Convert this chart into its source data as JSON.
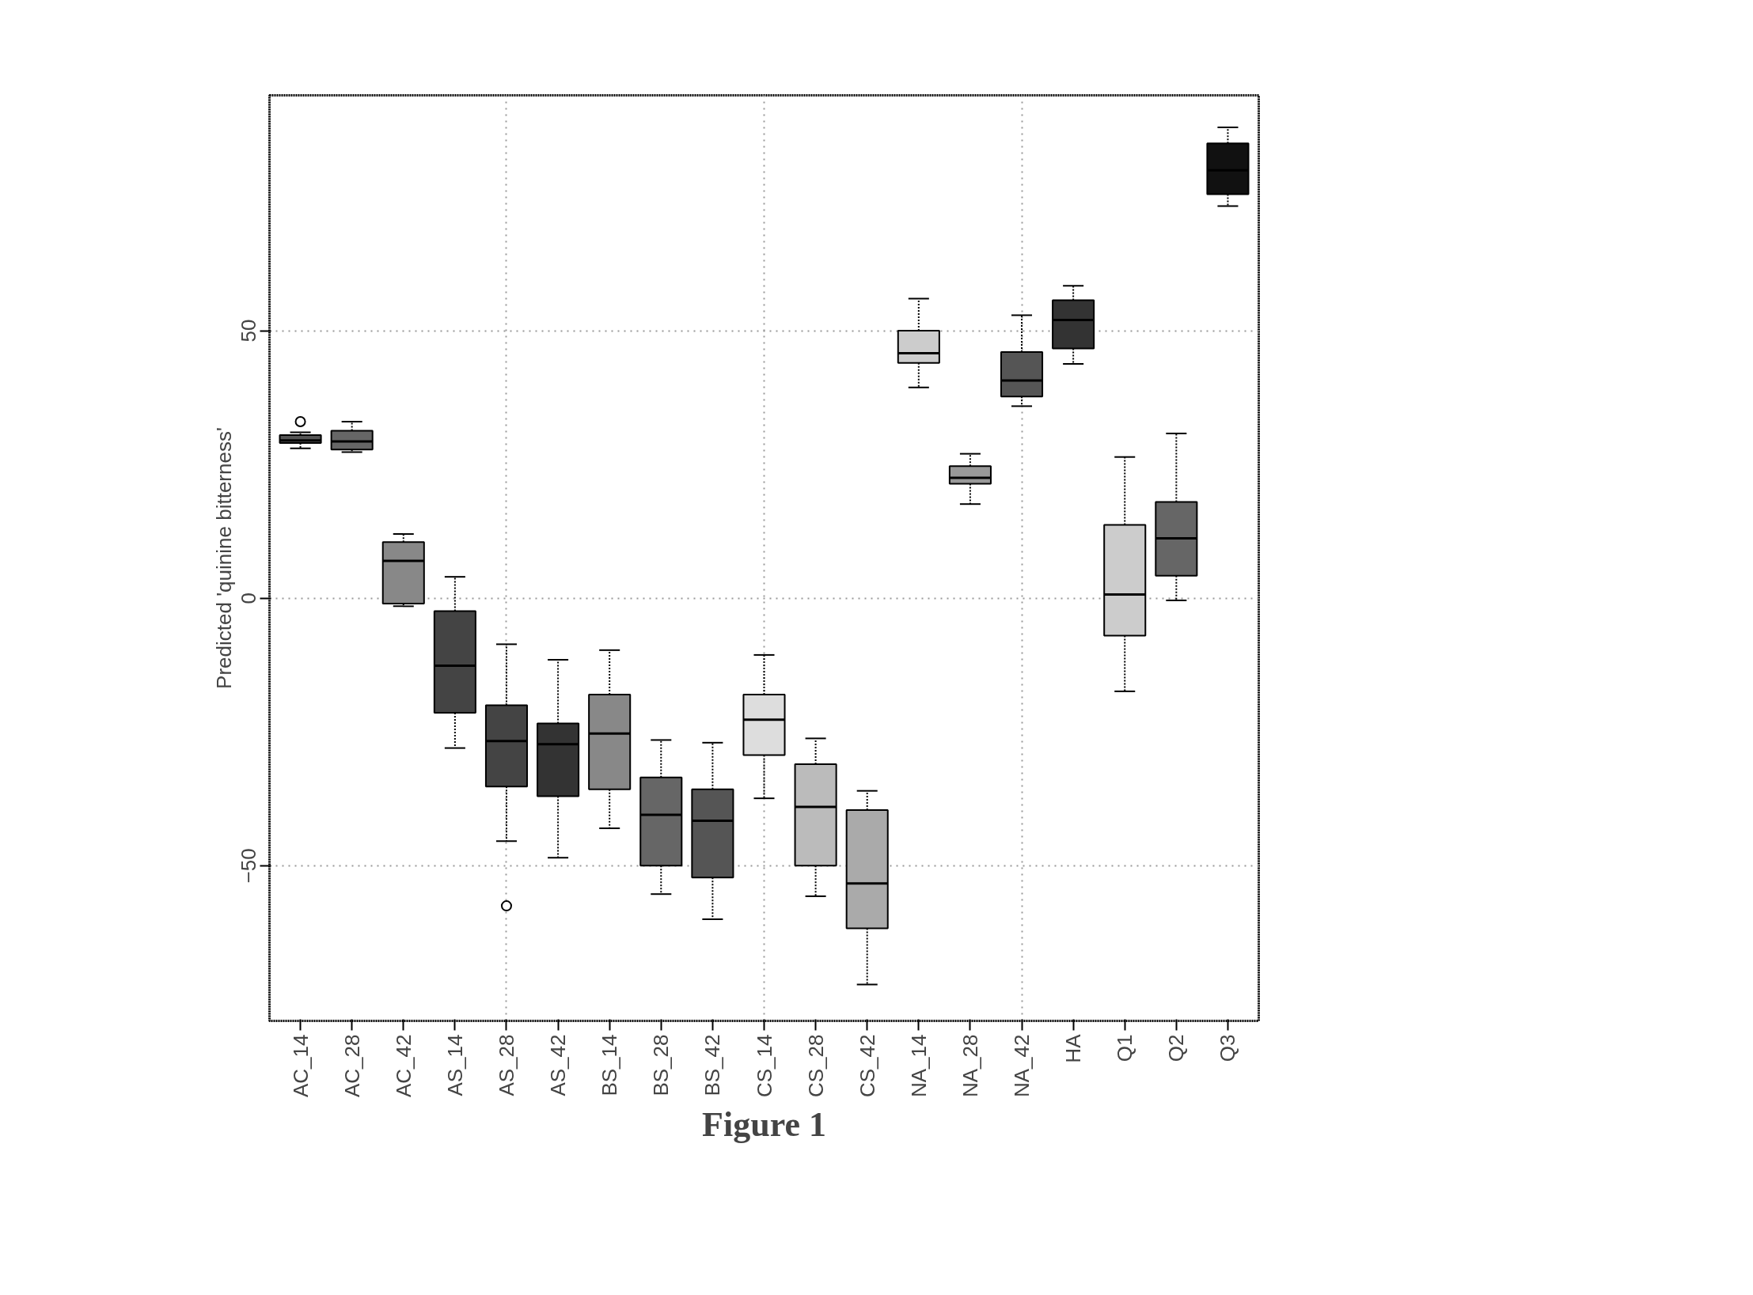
{
  "chart_data": {
    "type": "box",
    "ylabel": "Predicted 'quinine bitterness'",
    "categories": [
      "AC_14",
      "AC_28",
      "AC_42",
      "AS_14",
      "AS_28",
      "AS_42",
      "BS_14",
      "BS_28",
      "BS_42",
      "CS_14",
      "CS_28",
      "CS_42",
      "NA_14",
      "NA_28",
      "NA_42",
      "HA",
      "Q1",
      "Q2",
      "Q3"
    ],
    "boxes": [
      {
        "low": 28,
        "q1": 29,
        "median": 29.5,
        "q3": 30.5,
        "high": 31,
        "outliers": [
          33
        ]
      },
      {
        "low": 27.3,
        "q1": 27.8,
        "median": 29.3,
        "q3": 31.3,
        "high": 33
      },
      {
        "low": -1.5,
        "q1": -1,
        "median": 7,
        "q3": 10.5,
        "high": 12
      },
      {
        "low": -28,
        "q1": -21.4,
        "median": -12.6,
        "q3": -2.4,
        "high": 4
      },
      {
        "low": -45.4,
        "q1": -35.2,
        "median": -26.7,
        "q3": -20,
        "high": -8.6,
        "outliers": [
          -57.5
        ]
      },
      {
        "low": -48.5,
        "q1": -37,
        "median": -27.3,
        "q3": -23.4,
        "high": -11.5
      },
      {
        "low": -43,
        "q1": -35.7,
        "median": -25.3,
        "q3": -18,
        "high": -9.7
      },
      {
        "low": -55.3,
        "q1": -50,
        "median": -40.5,
        "q3": -33.5,
        "high": -26.5
      },
      {
        "low": -60,
        "q1": -52.2,
        "median": -41.6,
        "q3": -35.7,
        "high": -27
      },
      {
        "low": -37.4,
        "q1": -29.3,
        "median": -22.7,
        "q3": -18,
        "high": -10.6
      },
      {
        "low": -55.7,
        "q1": -50,
        "median": -39,
        "q3": -31,
        "high": -26.2
      },
      {
        "low": -72.2,
        "q1": -61.7,
        "median": -53.3,
        "q3": -39.6,
        "high": -36
      },
      {
        "low": 39.4,
        "q1": 44,
        "median": 45.8,
        "q3": 50,
        "high": 56
      },
      {
        "low": 17.6,
        "q1": 21.4,
        "median": 22.5,
        "q3": 24.7,
        "high": 27
      },
      {
        "low": 35.9,
        "q1": 37.7,
        "median": 40.7,
        "q3": 46,
        "high": 52.9
      },
      {
        "low": 43.8,
        "q1": 46.7,
        "median": 52,
        "q3": 55.7,
        "high": 58.4
      },
      {
        "low": -17.4,
        "q1": -7,
        "median": 0.7,
        "q3": 13.7,
        "high": 26.4
      },
      {
        "low": -0.4,
        "q1": 4.2,
        "median": 11.2,
        "q3": 18,
        "high": 30.8
      },
      {
        "low": 73.3,
        "q1": 75.5,
        "median": 80,
        "q3": 85,
        "high": 88
      }
    ],
    "colors": [
      "#555555",
      "#666666",
      "#888888",
      "#444444",
      "#444444",
      "#333333",
      "#888888",
      "#666666",
      "#555555",
      "#dddddd",
      "#bbbbbb",
      "#aaaaaa",
      "#cccccc",
      "#999999",
      "#555555",
      "#333333",
      "#cccccc",
      "#666666",
      "#111111"
    ],
    "ylim": [
      -79,
      94
    ],
    "yticks": [
      -50,
      0,
      50
    ],
    "grid": true,
    "annotations": [
      "Figure 1"
    ]
  }
}
